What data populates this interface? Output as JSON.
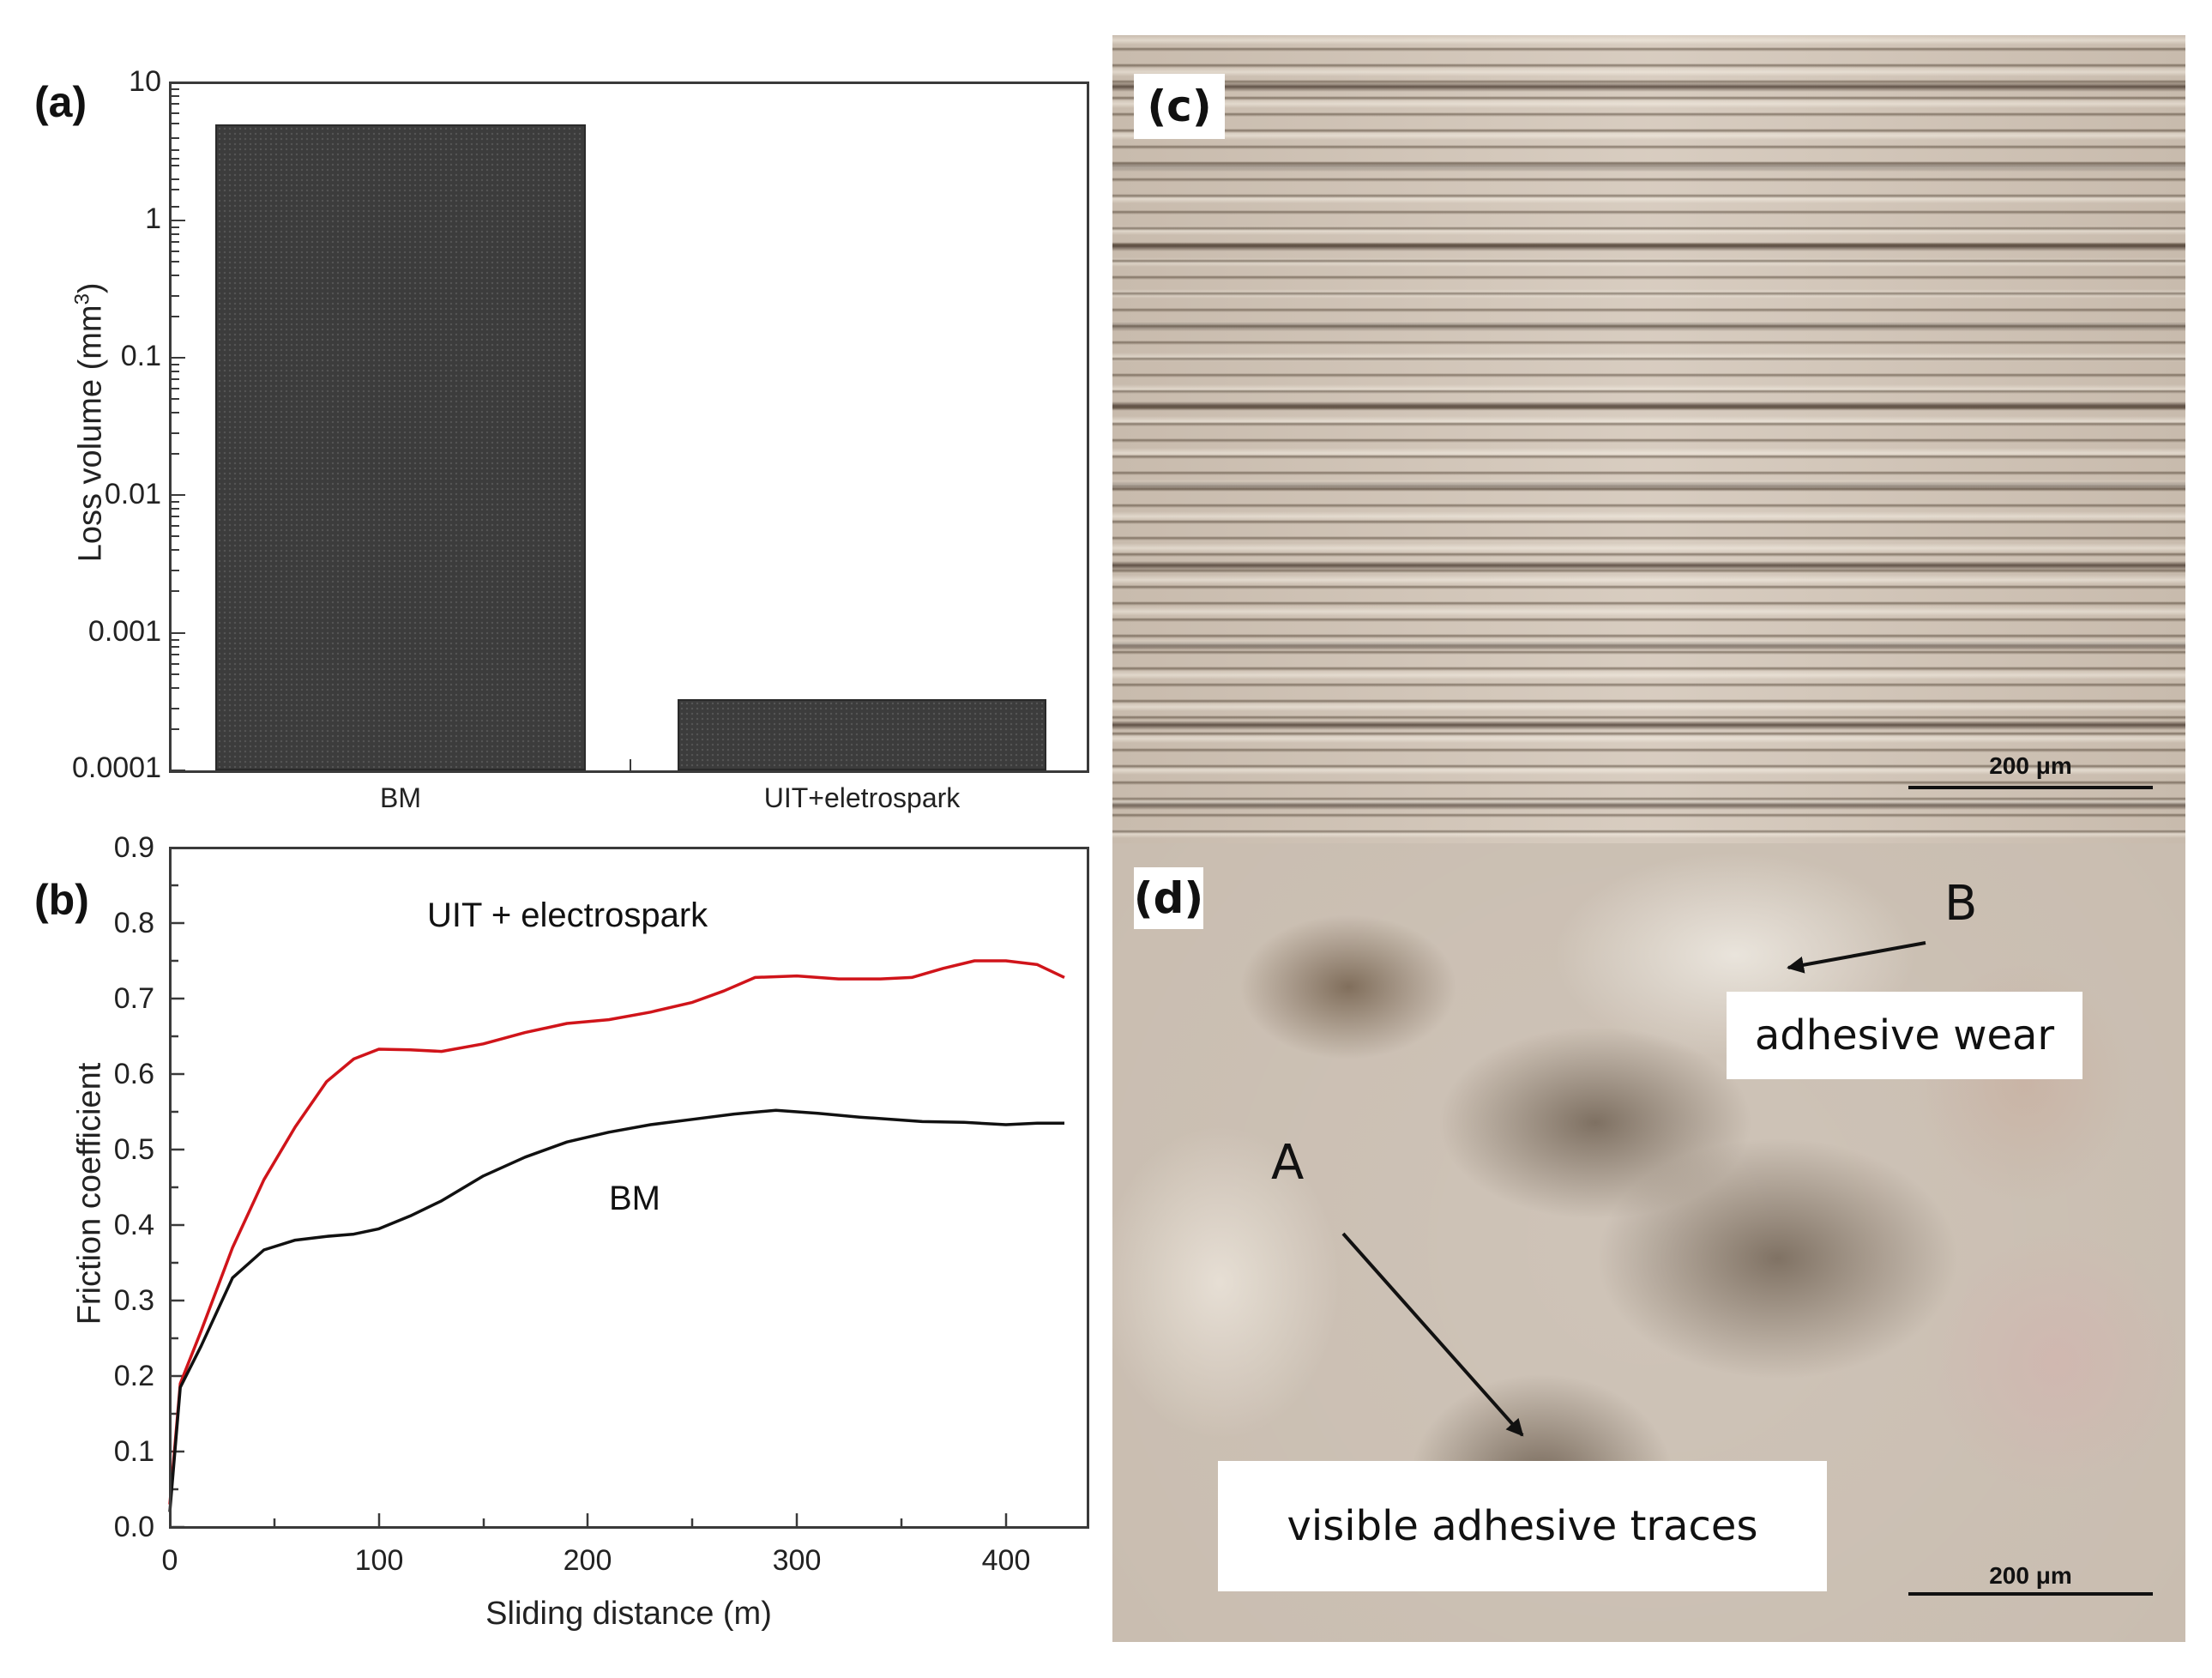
{
  "figure": {
    "panel_a": {
      "label": "(a)",
      "y_axis_title": "Loss volume (mm",
      "y_axis_title_sup": "3",
      "y_axis_title_end": ")",
      "y_ticks": [
        "10",
        "1",
        "0.1",
        "0.01",
        "0.001",
        "0.0001"
      ],
      "categories": [
        "BM",
        "UIT+eletrospark"
      ]
    },
    "panel_b": {
      "label": "(b)",
      "y_axis_title": "Friction coefficient",
      "x_axis_title": "Sliding distance (m)",
      "y_ticks": [
        "0.0",
        "0.1",
        "0.2",
        "0.3",
        "0.4",
        "0.5",
        "0.6",
        "0.7",
        "0.8",
        "0.9"
      ],
      "x_ticks": [
        "0",
        "100",
        "200",
        "300",
        "400"
      ],
      "annotation_red": "UIT + electrospark",
      "annotation_black": "BM",
      "colors": {
        "red_series": "#d0141a",
        "black_series": "#111111"
      }
    },
    "panel_c": {
      "label": "(c)",
      "scale_bar": "200 μm"
    },
    "panel_d": {
      "label": "(d)",
      "scale_bar": "200 μm",
      "marker_a": "A",
      "marker_b": "B",
      "callout_b": "adhesive wear",
      "callout_a": "visible adhesive traces"
    }
  },
  "chart_data": [
    {
      "type": "bar",
      "title": "(a)",
      "categories": [
        "BM",
        "UIT+eletrospark"
      ],
      "values": [
        4.9,
        0.00032
      ],
      "xlabel": "",
      "ylabel": "Loss volume (mm^3)",
      "yscale": "log",
      "ylim": [
        0.0001,
        10
      ],
      "y_tick_labels": [
        "0.0001",
        "0.001",
        "0.01",
        "0.1",
        "1",
        "10"
      ],
      "grid": false,
      "bar_color": "#3c3c3c"
    },
    {
      "type": "line",
      "title": "(b)",
      "xlabel": "Sliding distance (m)",
      "ylabel": "Friction coefficient",
      "xlim": [
        0,
        440
      ],
      "ylim": [
        0.0,
        0.9
      ],
      "x_tick_labels": [
        "0",
        "100",
        "200",
        "300",
        "400"
      ],
      "y_tick_labels": [
        "0.0",
        "0.1",
        "0.2",
        "0.3",
        "0.4",
        "0.5",
        "0.6",
        "0.7",
        "0.8",
        "0.9"
      ],
      "grid": false,
      "legend": "inline annotations",
      "series": [
        {
          "name": "UIT + electrospark",
          "color": "#d0141a",
          "x": [
            0,
            5,
            15,
            30,
            45,
            60,
            75,
            88,
            100,
            115,
            130,
            150,
            170,
            190,
            210,
            230,
            250,
            265,
            280,
            300,
            320,
            340,
            355,
            370,
            385,
            400,
            415,
            428
          ],
          "y": [
            0.03,
            0.19,
            0.26,
            0.37,
            0.46,
            0.53,
            0.59,
            0.62,
            0.633,
            0.632,
            0.63,
            0.64,
            0.655,
            0.667,
            0.672,
            0.682,
            0.695,
            0.71,
            0.728,
            0.73,
            0.726,
            0.726,
            0.728,
            0.74,
            0.75,
            0.75,
            0.745,
            0.728
          ]
        },
        {
          "name": "BM",
          "color": "#111111",
          "x": [
            0,
            5,
            15,
            30,
            45,
            60,
            75,
            88,
            100,
            115,
            130,
            150,
            170,
            190,
            210,
            230,
            250,
            270,
            290,
            310,
            330,
            360,
            380,
            400,
            415,
            428
          ],
          "y": [
            0.02,
            0.185,
            0.24,
            0.33,
            0.367,
            0.38,
            0.385,
            0.388,
            0.395,
            0.412,
            0.432,
            0.465,
            0.49,
            0.51,
            0.523,
            0.533,
            0.54,
            0.547,
            0.552,
            0.548,
            0.543,
            0.537,
            0.536,
            0.533,
            0.535,
            0.535
          ]
        }
      ]
    }
  ]
}
